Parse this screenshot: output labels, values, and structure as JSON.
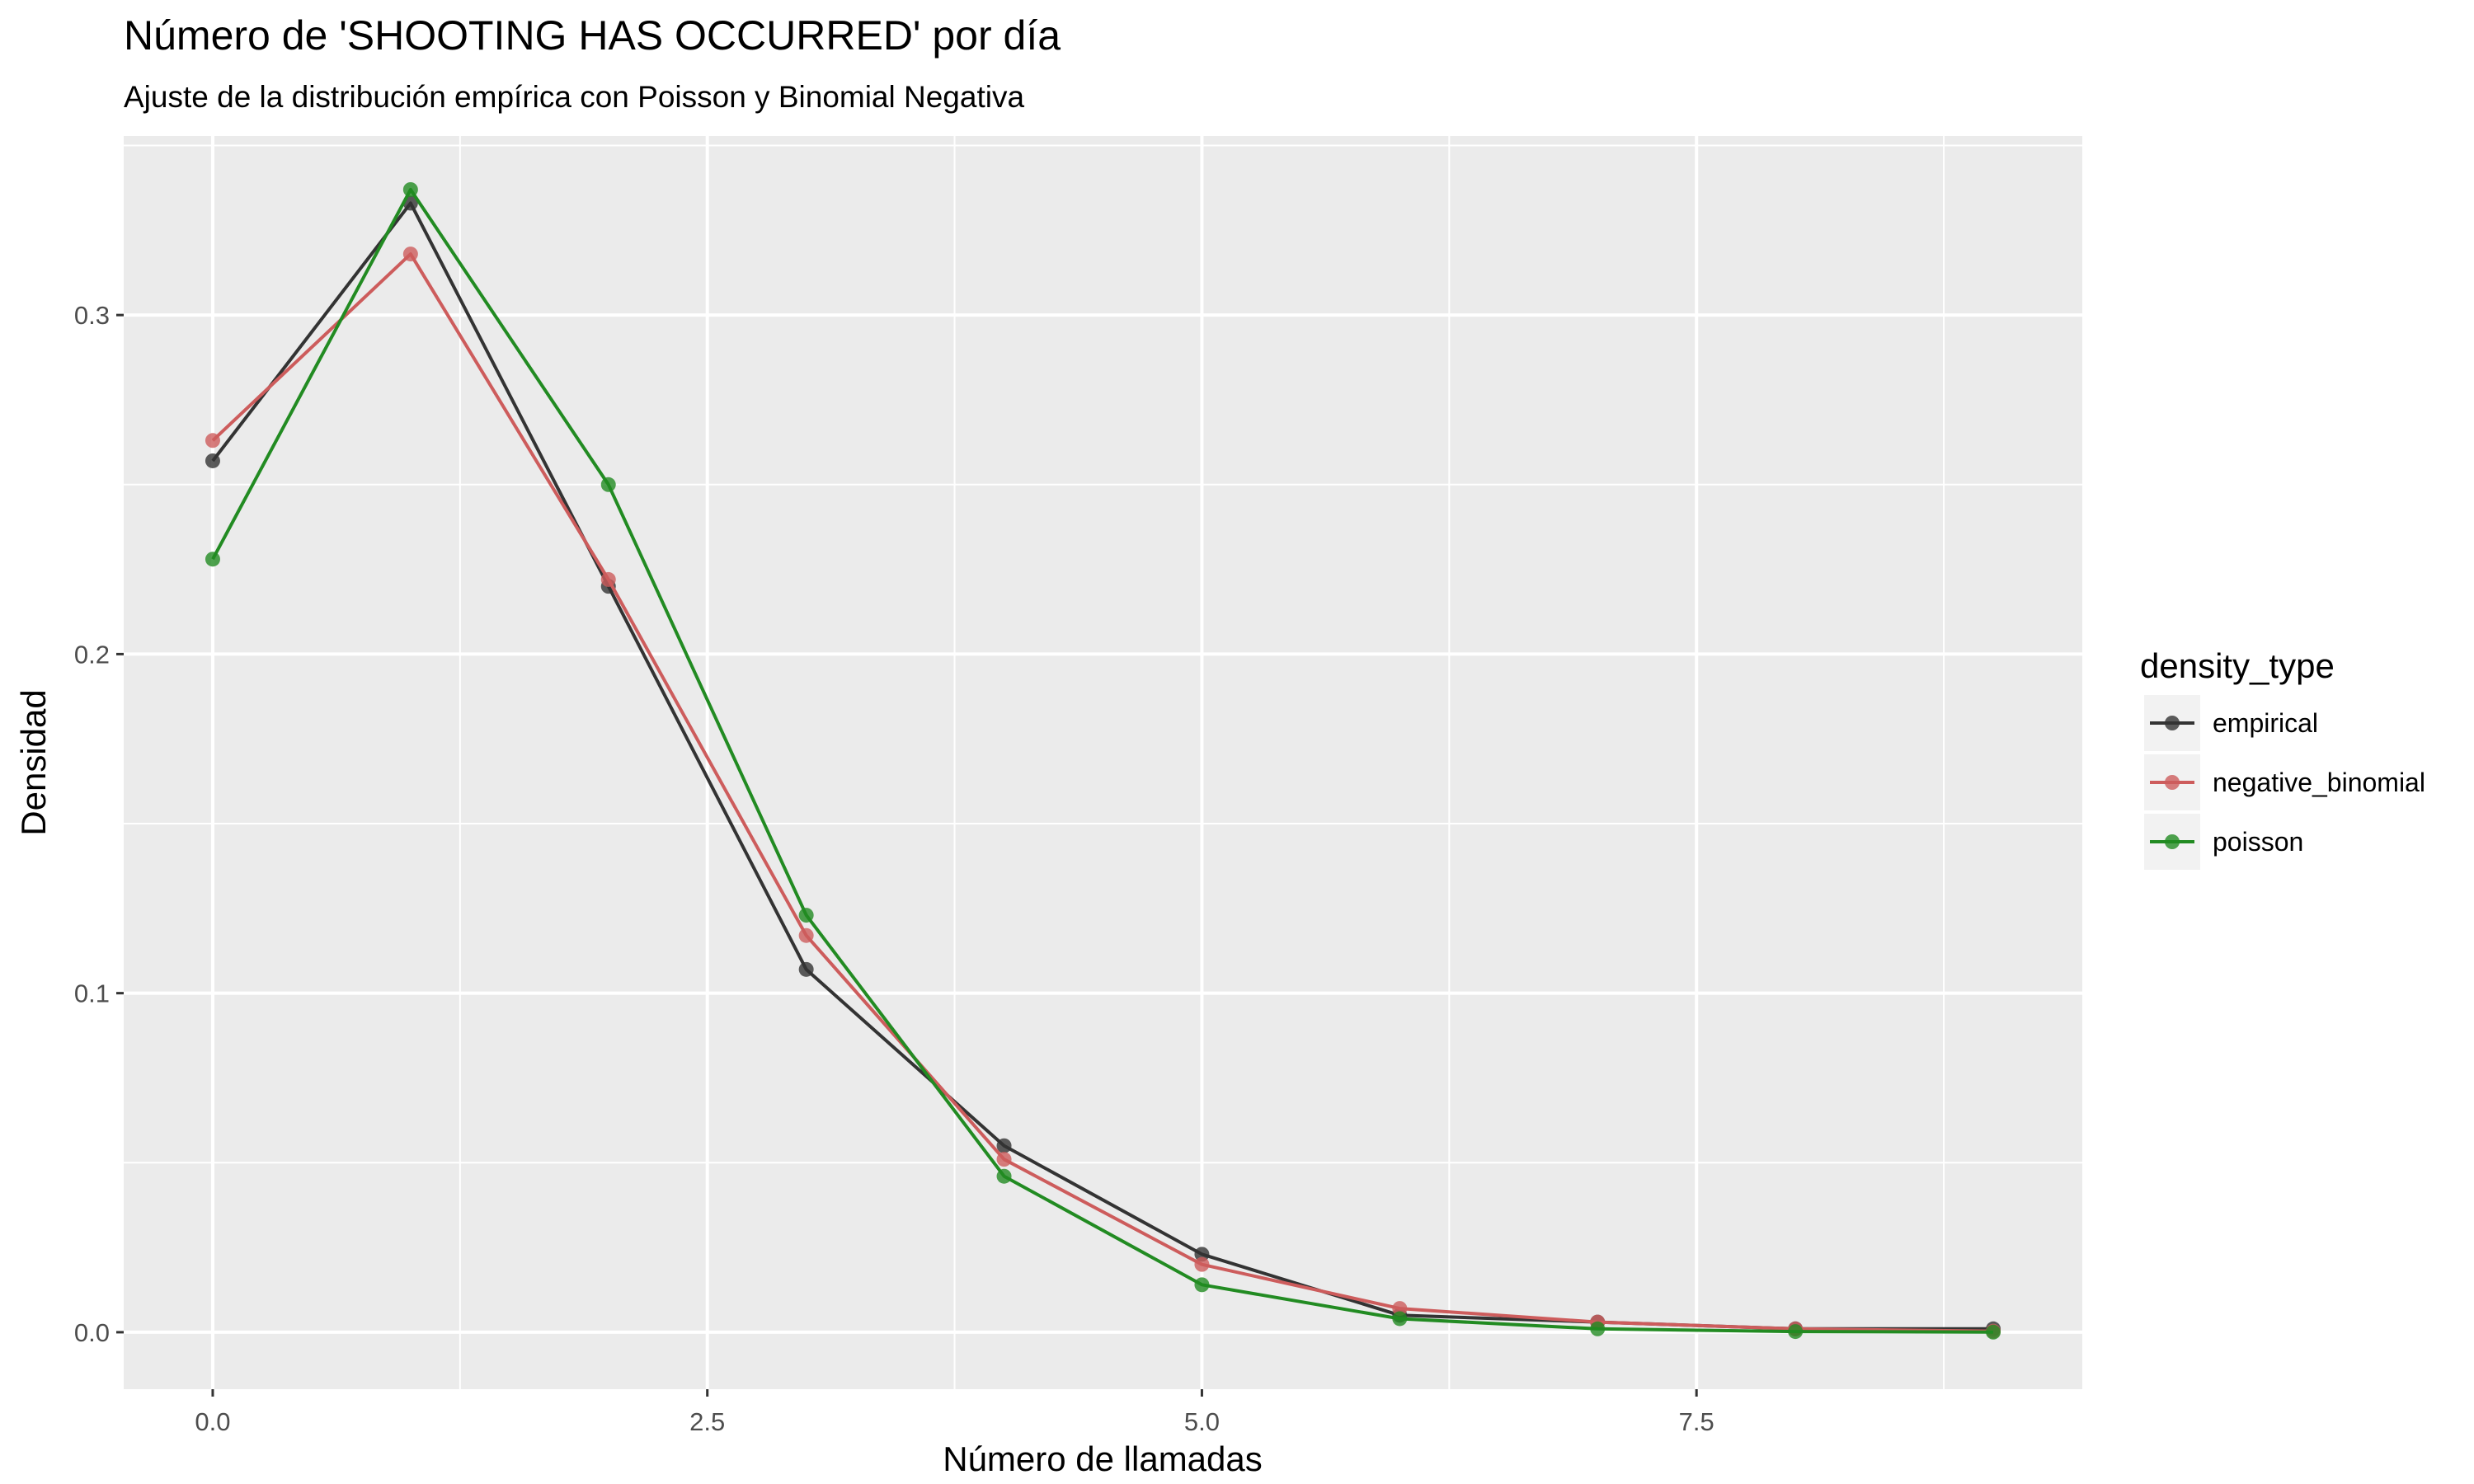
{
  "chart_data": {
    "type": "line",
    "title": "Número de 'SHOOTING HAS OCCURRED' por día",
    "subtitle": "Ajuste de la distribución empírica con Poisson y Binomial Negativa",
    "xlabel": "Número de llamadas",
    "ylabel": "Densidad",
    "xlim": [
      -0.45,
      9.45
    ],
    "ylim": [
      -0.0168,
      0.3528
    ],
    "x_ticks": [
      0,
      2.5,
      5,
      7.5
    ],
    "x_tick_labels": [
      "0.0",
      "2.5",
      "5.0",
      "7.5"
    ],
    "y_ticks": [
      0,
      0.1,
      0.2,
      0.3
    ],
    "y_tick_labels": [
      "0.0",
      "0.1",
      "0.2",
      "0.3"
    ],
    "grid": true,
    "legend_title": "density_type",
    "legend_position": "right",
    "x": [
      0,
      1,
      2,
      3,
      4,
      5,
      6,
      7,
      8,
      9
    ],
    "series": [
      {
        "name": "empirical",
        "color": "#333333",
        "values": [
          0.257,
          0.333,
          0.22,
          0.107,
          0.055,
          0.023,
          0.005,
          0.003,
          0.001,
          0.001
        ]
      },
      {
        "name": "negative_binomial",
        "color": "#cd5c5c",
        "values": [
          0.263,
          0.318,
          0.222,
          0.117,
          0.051,
          0.02,
          0.007,
          0.003,
          0.001,
          0.0003
        ]
      },
      {
        "name": "poisson",
        "color": "#228b22",
        "values": [
          0.228,
          0.337,
          0.25,
          0.123,
          0.046,
          0.014,
          0.004,
          0.001,
          0.0002,
          3e-05
        ]
      }
    ]
  }
}
